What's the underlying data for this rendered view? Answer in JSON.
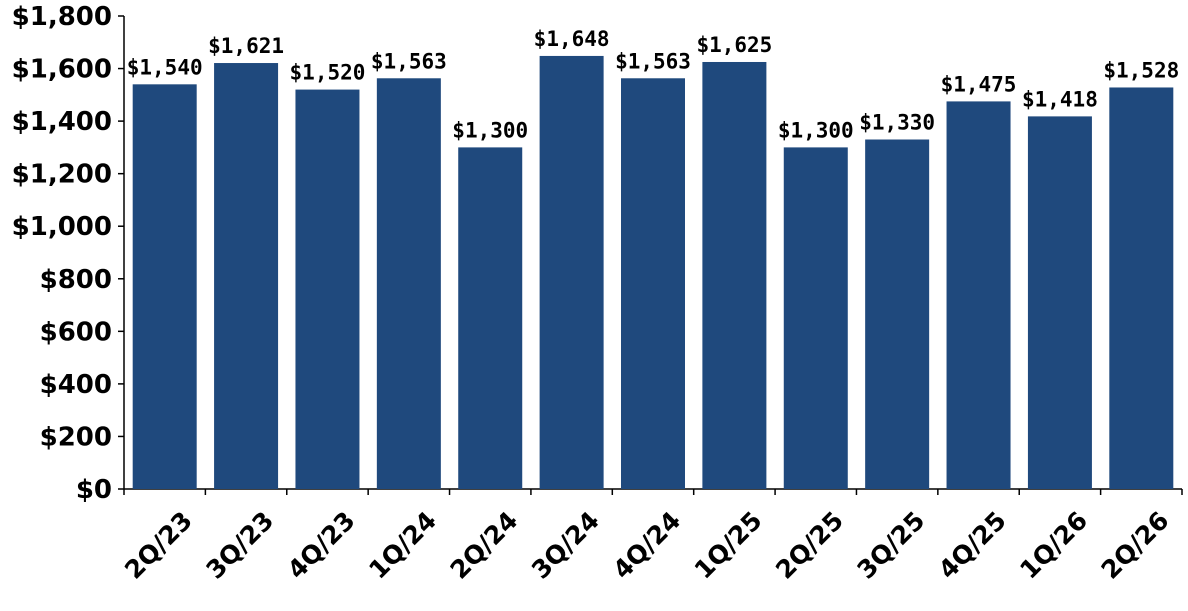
{
  "chart_data": {
    "type": "bar",
    "categories": [
      "2Q/23",
      "3Q/23",
      "4Q/23",
      "1Q/24",
      "2Q/24",
      "3Q/24",
      "4Q/24",
      "1Q/25",
      "2Q/25",
      "3Q/25",
      "4Q/25",
      "1Q/26",
      "2Q/26"
    ],
    "values": [
      1540,
      1621,
      1520,
      1563,
      1300,
      1648,
      1563,
      1625,
      1300,
      1330,
      1475,
      1418,
      1528
    ],
    "data_labels": [
      "$1,540",
      "$1,621",
      "$1,520",
      "$1,563",
      "$1,300",
      "$1,648",
      "$1,563",
      "$1,625",
      "$1,300",
      "$1,330",
      "$1,475",
      "$1,418",
      "$1,528"
    ],
    "yticks": [
      0,
      200,
      400,
      600,
      800,
      1000,
      1200,
      1400,
      1600,
      1800
    ],
    "ytick_labels": [
      "$0",
      "$200",
      "$400",
      "$600",
      "$800",
      "$1,000",
      "$1,200",
      "$1,400",
      "$1,600",
      "$1,800"
    ],
    "ylim": [
      0,
      1800
    ],
    "title": "",
    "xlabel": "",
    "ylabel": "",
    "grid": false,
    "legend": "none",
    "colors": {
      "bar": "#1f497d",
      "axis": "#000000",
      "text": "#000000"
    }
  }
}
